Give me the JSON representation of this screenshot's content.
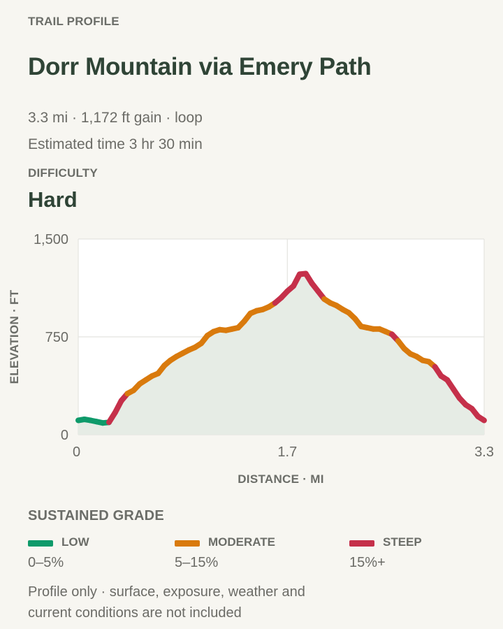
{
  "header": {
    "eyebrow": "TRAIL PROFILE",
    "title": "Dorr Mountain via Emery Path",
    "stats": "3.3 mi · 1,172 ft gain · loop",
    "time": "Estimated time 3 hr 30 min",
    "difficulty_label": "DIFFICULTY",
    "difficulty_value": "Hard"
  },
  "chart_data": {
    "type": "line",
    "xlabel": "DISTANCE · MI",
    "ylabel": "ELEVATION · FT",
    "xlim": [
      0,
      3.3
    ],
    "ylim": [
      0,
      1500
    ],
    "x_ticks": [
      "0",
      "1.7",
      "3.3"
    ],
    "y_ticks": [
      "1,500",
      "750",
      "0"
    ],
    "x_tick_values": [
      0,
      1.7,
      3.3
    ],
    "y_tick_values": [
      1500,
      750,
      0
    ],
    "grid": true,
    "area_fill": true,
    "series": [
      {
        "x": [
          0,
          0.05,
          0.1,
          0.15,
          0.2,
          0.25,
          0.3,
          0.35,
          0.4,
          0.45,
          0.5,
          0.55,
          0.6,
          0.65,
          0.7,
          0.75,
          0.8,
          0.85,
          0.9,
          0.95,
          1.0,
          1.05,
          1.1,
          1.15,
          1.2,
          1.25,
          1.3,
          1.35,
          1.4,
          1.45,
          1.5,
          1.55,
          1.6,
          1.65,
          1.7,
          1.75,
          1.8,
          1.85,
          1.9,
          1.95,
          2.0,
          2.05,
          2.1,
          2.15,
          2.2,
          2.25,
          2.3,
          2.35,
          2.4,
          2.45,
          2.5,
          2.55,
          2.6,
          2.65,
          2.7,
          2.75,
          2.8,
          2.85,
          2.9,
          2.95,
          3.0,
          3.05,
          3.1,
          3.15,
          3.2,
          3.25,
          3.3
        ],
        "y": [
          110,
          118,
          110,
          100,
          90,
          95,
          170,
          260,
          315,
          340,
          390,
          420,
          450,
          470,
          530,
          570,
          600,
          625,
          650,
          670,
          700,
          760,
          790,
          805,
          800,
          810,
          820,
          870,
          930,
          950,
          960,
          980,
          1010,
          1050,
          1100,
          1140,
          1230,
          1235,
          1160,
          1100,
          1040,
          1010,
          990,
          960,
          935,
          890,
          830,
          820,
          810,
          810,
          790,
          770,
          720,
          660,
          620,
          600,
          570,
          560,
          520,
          450,
          420,
          350,
          280,
          230,
          200,
          140,
          110
        ],
        "grade_colors": [
          "low",
          "low",
          "low",
          "low",
          "low",
          "low",
          "steep",
          "steep",
          "steep",
          "moderate",
          "moderate",
          "moderate",
          "moderate",
          "moderate",
          "moderate",
          "moderate",
          "moderate",
          "moderate",
          "moderate",
          "moderate",
          "moderate",
          "moderate",
          "moderate",
          "moderate",
          "moderate",
          "moderate",
          "moderate",
          "moderate",
          "moderate",
          "moderate",
          "moderate",
          "moderate",
          "moderate",
          "steep",
          "steep",
          "steep",
          "steep",
          "steep",
          "steep",
          "steep",
          "steep",
          "moderate",
          "moderate",
          "moderate",
          "moderate",
          "moderate",
          "moderate",
          "moderate",
          "moderate",
          "moderate",
          "moderate",
          "moderate",
          "steep",
          "moderate",
          "moderate",
          "moderate",
          "moderate",
          "moderate",
          "moderate",
          "steep",
          "steep",
          "steep",
          "steep",
          "steep",
          "steep",
          "steep",
          "steep"
        ]
      }
    ]
  },
  "legend": {
    "title": "SUSTAINED GRADE",
    "items": [
      {
        "name": "LOW",
        "range": "0–5%",
        "color": "#0e9a6a"
      },
      {
        "name": "MODERATE",
        "range": "5–15%",
        "color": "#d97a0d"
      },
      {
        "name": "STEEP",
        "range": "15%+",
        "color": "#c5304a"
      }
    ]
  },
  "colors": {
    "low": "#0e9a6a",
    "moderate": "#d97a0d",
    "steep": "#c5304a",
    "plot_bg": "#ffffff",
    "area_fill": "#e6ece5",
    "grid": "#e4e4e0",
    "title": "#2f4436"
  },
  "footnote": "Profile only · surface, exposure, weather and current conditions are not included"
}
